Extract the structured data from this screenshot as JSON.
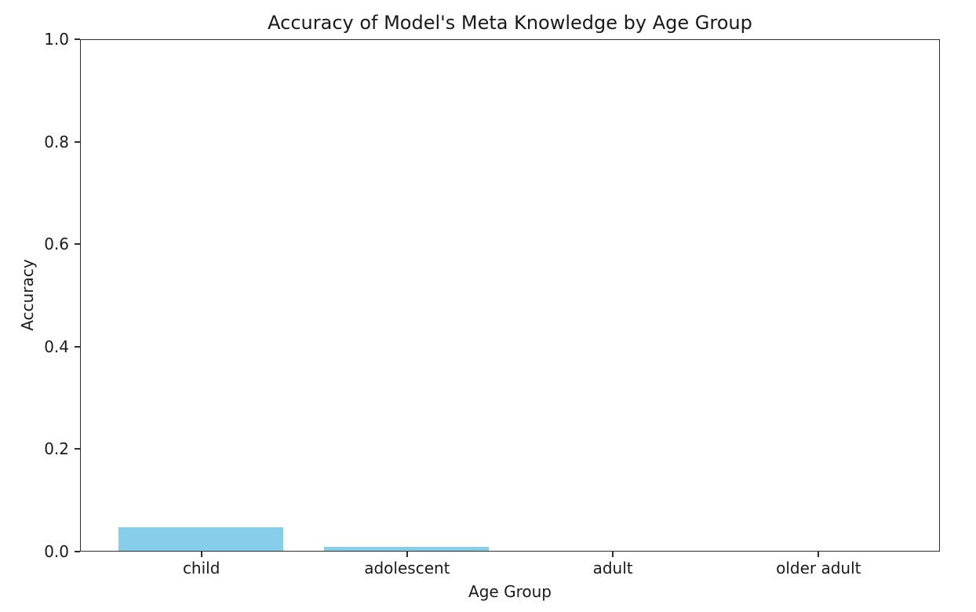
{
  "chart_data": {
    "type": "bar",
    "title": "Accuracy of Model's Meta Knowledge by Age Group",
    "xlabel": "Age Group",
    "ylabel": "Accuracy",
    "categories": [
      "child",
      "adolescent",
      "adult",
      "older adult"
    ],
    "values": [
      0.046,
      0.008,
      0.0,
      0.0
    ],
    "ylim": [
      0.0,
      1.0
    ],
    "yticks": [
      0.0,
      0.2,
      0.4,
      0.6,
      0.8,
      1.0
    ],
    "ytick_labels": [
      "0.0",
      "0.2",
      "0.4",
      "0.6",
      "0.8",
      "1.0"
    ],
    "xlim": [
      -0.59,
      3.59
    ],
    "bar_width": 0.8,
    "bar_color": "#87CEEB",
    "spine_color": "#2e2e2e",
    "text_color": "#1a1a1a",
    "background_color": "#ffffff",
    "grid": false,
    "legend": false
  }
}
